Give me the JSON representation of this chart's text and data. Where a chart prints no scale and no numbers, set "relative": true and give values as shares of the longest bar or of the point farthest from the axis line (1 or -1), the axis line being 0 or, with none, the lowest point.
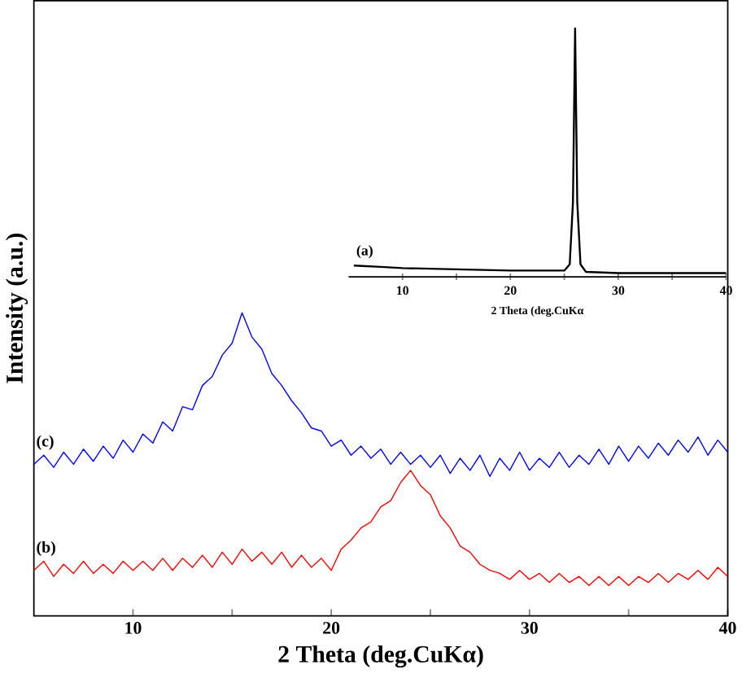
{
  "chart_data": [
    {
      "type": "line",
      "relative": true,
      "xlabel": "2 Theta (deg.CuKα)",
      "ylabel": "Intensity (a.u.)",
      "xlim": [
        5,
        40
      ],
      "xticks": [
        10,
        {
          "value": 15,
          "label": null
        },
        20,
        {
          "value": 25,
          "label": null
        },
        30,
        {
          "value": 35,
          "label": null
        },
        40
      ],
      "series": [
        {
          "name": "(c)",
          "color": "#0000ff",
          "x": [
            5,
            5.5,
            6,
            6.5,
            7,
            7.5,
            8,
            8.5,
            9,
            9.5,
            10,
            10.5,
            11,
            11.5,
            12,
            12.5,
            13,
            13.5,
            14,
            14.5,
            15,
            15.5,
            16,
            16.5,
            17,
            17.5,
            18,
            18.5,
            19,
            19.5,
            20,
            20.5,
            21,
            21.5,
            22,
            22.5,
            23,
            23.5,
            24,
            24.5,
            25,
            25.5,
            26,
            26.5,
            27,
            27.5,
            28,
            28.5,
            29,
            29.5,
            30,
            30.5,
            31,
            31.5,
            32,
            32.5,
            33,
            33.5,
            34,
            34.5,
            35,
            35.5,
            36,
            36.5,
            37,
            37.5,
            38,
            38.5,
            39,
            39.5,
            40
          ],
          "values": [
            0.5,
            0.53,
            0.49,
            0.54,
            0.5,
            0.55,
            0.51,
            0.56,
            0.52,
            0.58,
            0.54,
            0.6,
            0.57,
            0.64,
            0.61,
            0.69,
            0.68,
            0.76,
            0.79,
            0.86,
            0.9,
            1.0,
            0.92,
            0.88,
            0.8,
            0.76,
            0.71,
            0.67,
            0.62,
            0.61,
            0.56,
            0.58,
            0.53,
            0.56,
            0.52,
            0.55,
            0.5,
            0.54,
            0.5,
            0.53,
            0.49,
            0.53,
            0.47,
            0.52,
            0.48,
            0.53,
            0.46,
            0.52,
            0.48,
            0.54,
            0.48,
            0.52,
            0.49,
            0.54,
            0.49,
            0.53,
            0.5,
            0.55,
            0.5,
            0.56,
            0.51,
            0.56,
            0.52,
            0.57,
            0.53,
            0.58,
            0.54,
            0.59,
            0.53,
            0.58,
            0.54
          ]
        },
        {
          "name": "(b)",
          "color": "#ff0000",
          "x": [
            5,
            5.5,
            6,
            6.5,
            7,
            7.5,
            8,
            8.5,
            9,
            9.5,
            10,
            10.5,
            11,
            11.5,
            12,
            12.5,
            13,
            13.5,
            14,
            14.5,
            15,
            15.5,
            16,
            16.5,
            17,
            17.5,
            18,
            18.5,
            19,
            19.5,
            20,
            20.5,
            21,
            21.5,
            22,
            22.5,
            23,
            23.5,
            24,
            24.5,
            25,
            25.5,
            26,
            26.5,
            27,
            27.5,
            28,
            28.5,
            29,
            29.5,
            30,
            30.5,
            31,
            31.5,
            32,
            32.5,
            33,
            33.5,
            34,
            34.5,
            35,
            35.5,
            36,
            36.5,
            37,
            37.5,
            38,
            38.5,
            39,
            39.5,
            40
          ],
          "values": [
            0.15,
            0.18,
            0.13,
            0.17,
            0.14,
            0.18,
            0.14,
            0.17,
            0.14,
            0.18,
            0.15,
            0.18,
            0.15,
            0.19,
            0.15,
            0.19,
            0.16,
            0.2,
            0.16,
            0.21,
            0.17,
            0.22,
            0.18,
            0.21,
            0.17,
            0.21,
            0.16,
            0.2,
            0.16,
            0.19,
            0.15,
            0.22,
            0.25,
            0.29,
            0.31,
            0.36,
            0.38,
            0.44,
            0.48,
            0.43,
            0.4,
            0.33,
            0.29,
            0.23,
            0.21,
            0.17,
            0.15,
            0.14,
            0.12,
            0.15,
            0.12,
            0.14,
            0.11,
            0.14,
            0.11,
            0.13,
            0.1,
            0.13,
            0.1,
            0.13,
            0.1,
            0.13,
            0.11,
            0.14,
            0.11,
            0.14,
            0.12,
            0.15,
            0.12,
            0.16,
            0.13
          ]
        }
      ]
    },
    {
      "type": "line",
      "relative": true,
      "xlabel": "2 Theta (deg.CuKα",
      "xlim": [
        5,
        40
      ],
      "xticks": [
        10,
        {
          "value": 15,
          "label": null
        },
        20,
        {
          "value": 25,
          "label": null
        },
        30,
        {
          "value": 35,
          "label": null
        },
        40
      ],
      "series": [
        {
          "name": "(a)",
          "color": "#000000",
          "x": [
            5.5,
            8,
            10,
            15,
            20,
            25,
            25.5,
            25.8,
            26,
            26.2,
            26.5,
            27,
            30,
            35,
            40
          ],
          "values": [
            0.045,
            0.04,
            0.035,
            0.03,
            0.025,
            0.025,
            0.05,
            0.3,
            1.0,
            0.3,
            0.05,
            0.02,
            0.015,
            0.015,
            0.015
          ]
        }
      ]
    }
  ]
}
